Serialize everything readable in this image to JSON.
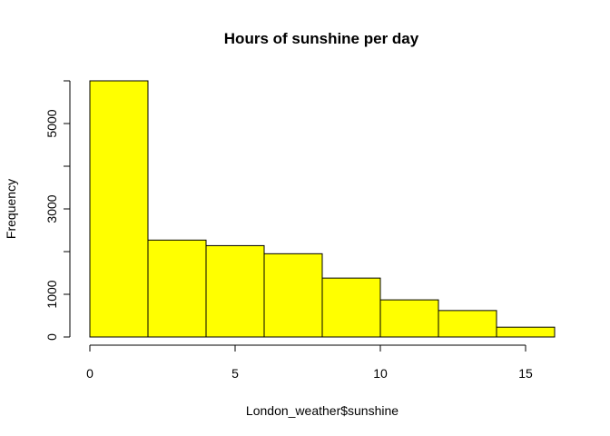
{
  "chart_data": {
    "type": "bar",
    "title": "Hours of sunshine per day",
    "xlabel": "London_weather$sunshine",
    "ylabel": "Frequency",
    "bins": [
      {
        "x0": 0,
        "x1": 2,
        "value": 6000
      },
      {
        "x0": 2,
        "x1": 4,
        "value": 2270
      },
      {
        "x0": 4,
        "x1": 6,
        "value": 2140
      },
      {
        "x0": 6,
        "x1": 8,
        "value": 1950
      },
      {
        "x0": 8,
        "x1": 10,
        "value": 1380
      },
      {
        "x0": 10,
        "x1": 12,
        "value": 870
      },
      {
        "x0": 12,
        "x1": 14,
        "value": 620
      },
      {
        "x0": 14,
        "x1": 16,
        "value": 230
      }
    ],
    "xlim": [
      0,
      16
    ],
    "ylim": [
      0,
      6000
    ],
    "x_ticks": [
      0,
      5,
      10,
      15
    ],
    "y_ticks": [
      0,
      1000,
      2000,
      3000,
      4000,
      5000,
      6000
    ],
    "y_tick_labels": [
      "0",
      "1000",
      "",
      "3000",
      "",
      "5000",
      ""
    ],
    "bar_color": "#ffff00",
    "border_color": "#000000",
    "grid": false,
    "legend": "none"
  }
}
